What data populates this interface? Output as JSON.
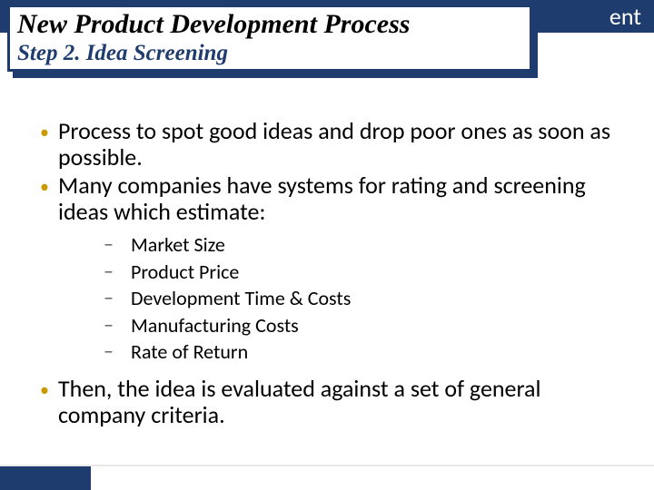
{
  "banner": {
    "text_fragment": "ent",
    "background_color": "#1f3c6e",
    "text_color": "#ffffff"
  },
  "title_box": {
    "main": "New Product Development Process",
    "sub": "Step 2.  Idea Screening",
    "border_color": "#1f3c6e",
    "shadow_color": "#1f3c6e",
    "background_color": "#ffffff",
    "main_color": "#000000",
    "sub_color": "#1f3c6e",
    "main_fontsize": 30,
    "sub_fontsize": 25,
    "font_family": "Times New Roman",
    "font_style": "italic bold"
  },
  "content": {
    "bullet_color": "#cc9900",
    "dash_color": "#555555",
    "text_color": "#000000",
    "l1_fontsize": 26,
    "l2_fontsize": 22,
    "items": [
      {
        "text": "Process to spot good ideas and drop poor ones as soon as possible."
      },
      {
        "text": "Many companies have systems for rating and screening ideas which estimate:",
        "sub": [
          "Market Size",
          "Product Price",
          "Development Time & Costs",
          "Manufacturing Costs",
          "Rate of Return"
        ]
      },
      {
        "text": "Then, the idea is evaluated against a set of general company criteria."
      }
    ]
  },
  "footer": {
    "bar_color": "#1f3c6e"
  }
}
